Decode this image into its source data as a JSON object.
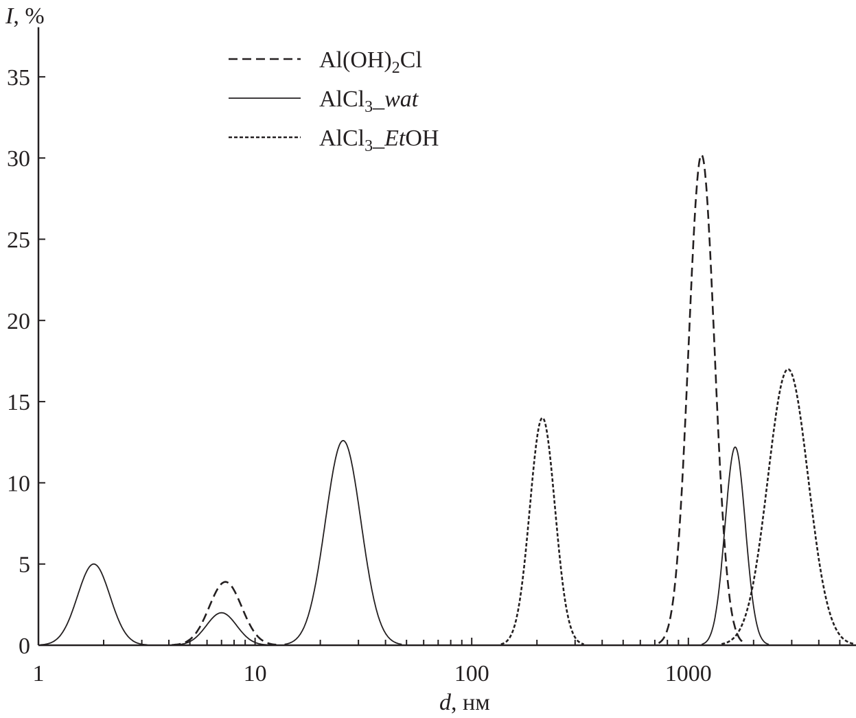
{
  "chart_data": {
    "type": "line",
    "title": "",
    "xlabel_var": "d",
    "xlabel_unit": ", нм",
    "ylabel_var": "I",
    "ylabel_unit": ", %",
    "x_scale": "log",
    "xlim": [
      1,
      6000
    ],
    "ylim": [
      0,
      37
    ],
    "x_ticks": [
      1,
      10,
      100,
      1000
    ],
    "x_tick_labels": [
      "1",
      "10",
      "100",
      "1000"
    ],
    "y_ticks": [
      0,
      5,
      10,
      15,
      20,
      25,
      30,
      35
    ],
    "y_tick_labels": [
      "0",
      "5",
      "10",
      "15",
      "20",
      "25",
      "30",
      "35"
    ],
    "grid": false,
    "legend_position": "top-center",
    "series": [
      {
        "name": "Al(OH)2Cl",
        "legend": {
          "main": "Al(OH)",
          "sub": "2",
          "rest": "Cl",
          "italic": ""
        },
        "style": "long-dash",
        "peaks": [
          {
            "d": 7.3,
            "I": 3.9,
            "log_width": 0.075
          },
          {
            "d": 1150,
            "I": 30.2,
            "log_width": 0.06
          }
        ]
      },
      {
        "name": "AlCl3_wat",
        "legend": {
          "main": "AlCl",
          "sub": "3",
          "rest": "_",
          "italic": "wat"
        },
        "style": "solid",
        "peaks": [
          {
            "d": 1.8,
            "I": 5.0,
            "log_width": 0.075
          },
          {
            "d": 7.0,
            "I": 2.0,
            "log_width": 0.07
          },
          {
            "d": 25.5,
            "I": 12.6,
            "log_width": 0.082
          },
          {
            "d": 1645,
            "I": 12.2,
            "log_width": 0.047
          }
        ]
      },
      {
        "name": "AlCl3_EtOH",
        "legend": {
          "main": "AlCl",
          "sub": "3",
          "rest": "_",
          "italic": "Et",
          "after": "OH"
        },
        "style": "short-dash",
        "peaks": [
          {
            "d": 212,
            "I": 14.0,
            "log_width": 0.058
          },
          {
            "d": 2885,
            "I": 17.0,
            "log_width": 0.093
          }
        ]
      }
    ]
  }
}
